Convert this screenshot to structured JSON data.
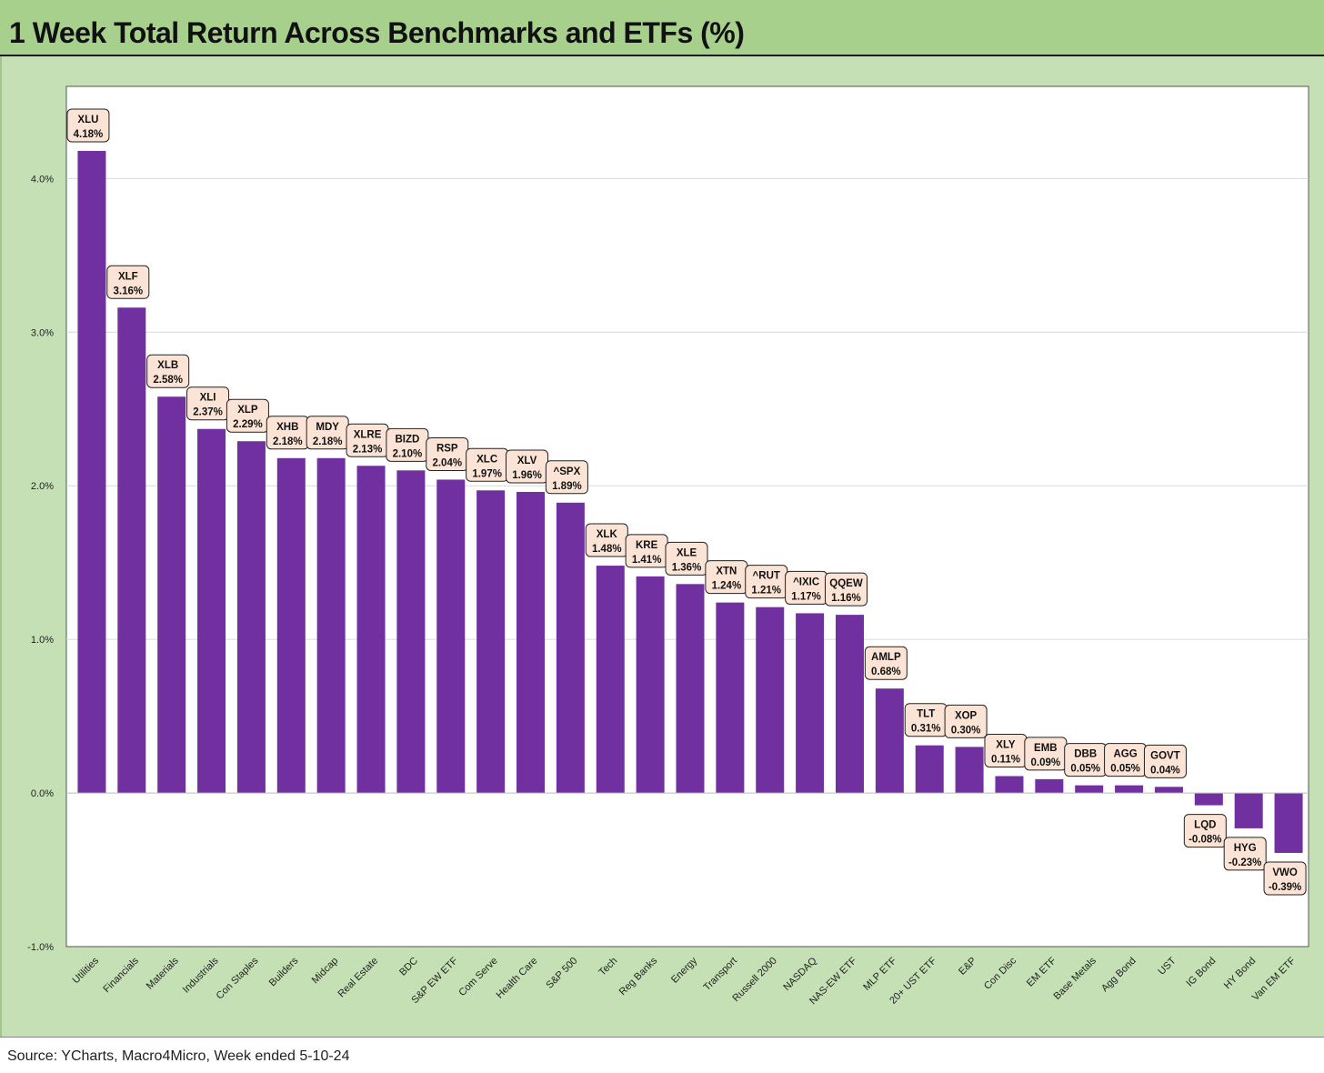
{
  "header": {
    "title": "1 Week Total Return Across Benchmarks and ETFs (%)"
  },
  "footer": {
    "source": "Source: YCharts, Macro4Micro, Week ended 5-10-24"
  },
  "colors": {
    "bar": "#7030a0",
    "label_bg": "#fbe4d5",
    "header_bg": "#a8d08d",
    "panel_bg": "#c5e0b4",
    "gridline": "#d9d9d9"
  },
  "chart_data": {
    "type": "bar",
    "title": "1 Week Total Return Across Benchmarks and ETFs (%)",
    "xlabel": "",
    "ylabel": "",
    "ylim": [
      -1.0,
      4.6
    ],
    "yticks": [
      -1.0,
      0.0,
      1.0,
      2.0,
      3.0,
      4.0
    ],
    "ytick_labels": [
      "-1.0%",
      "0.0%",
      "1.0%",
      "2.0%",
      "3.0%",
      "4.0%"
    ],
    "grid": true,
    "categories": [
      "Utilities",
      "Financials",
      "Materials",
      "Industrials",
      "Con Staples",
      "Builders",
      "Midcap",
      "Real Estate",
      "BDC",
      "S&P EW ETF",
      "Com Serve",
      "Health Care",
      "S&P 500",
      "Tech",
      "Reg Banks",
      "Energy",
      "Transport",
      "Russell 2000",
      "NASDAQ",
      "NAS-EW ETF",
      "MLP ETF",
      "20+ UST ETF",
      "E&P",
      "Con Disc",
      "EM ETF",
      "Base Metals",
      "Agg Bond",
      "UST",
      "IG Bond",
      "HY Bond",
      "Van EM ETF"
    ],
    "tickers": [
      "XLU",
      "XLF",
      "XLB",
      "XLI",
      "XLP",
      "XHB",
      "MDY",
      "XLRE",
      "BIZD",
      "RSP",
      "XLC",
      "XLV",
      "^SPX",
      "XLK",
      "KRE",
      "XLE",
      "XTN",
      "^RUT",
      "^IXIC",
      "QQEW",
      "AMLP",
      "TLT",
      "XOP",
      "XLY",
      "EMB",
      "DBB",
      "AGG",
      "GOVT",
      "LQD",
      "HYG",
      "VWO"
    ],
    "values": [
      4.18,
      3.16,
      2.58,
      2.37,
      2.29,
      2.18,
      2.18,
      2.13,
      2.1,
      2.04,
      1.97,
      1.96,
      1.89,
      1.48,
      1.41,
      1.36,
      1.24,
      1.21,
      1.17,
      1.16,
      0.68,
      0.31,
      0.3,
      0.11,
      0.09,
      0.05,
      0.05,
      0.04,
      -0.08,
      -0.23,
      -0.39
    ],
    "value_labels": [
      "4.18%",
      "3.16%",
      "2.58%",
      "2.37%",
      "2.29%",
      "2.18%",
      "2.18%",
      "2.13%",
      "2.10%",
      "2.04%",
      "1.97%",
      "1.96%",
      "1.89%",
      "1.48%",
      "1.41%",
      "1.36%",
      "1.24%",
      "1.21%",
      "1.17%",
      "1.16%",
      "0.68%",
      "0.31%",
      "0.30%",
      "0.11%",
      "0.09%",
      "0.05%",
      "0.05%",
      "0.04%",
      "-0.08%",
      "-0.23%",
      "-0.39%"
    ]
  }
}
